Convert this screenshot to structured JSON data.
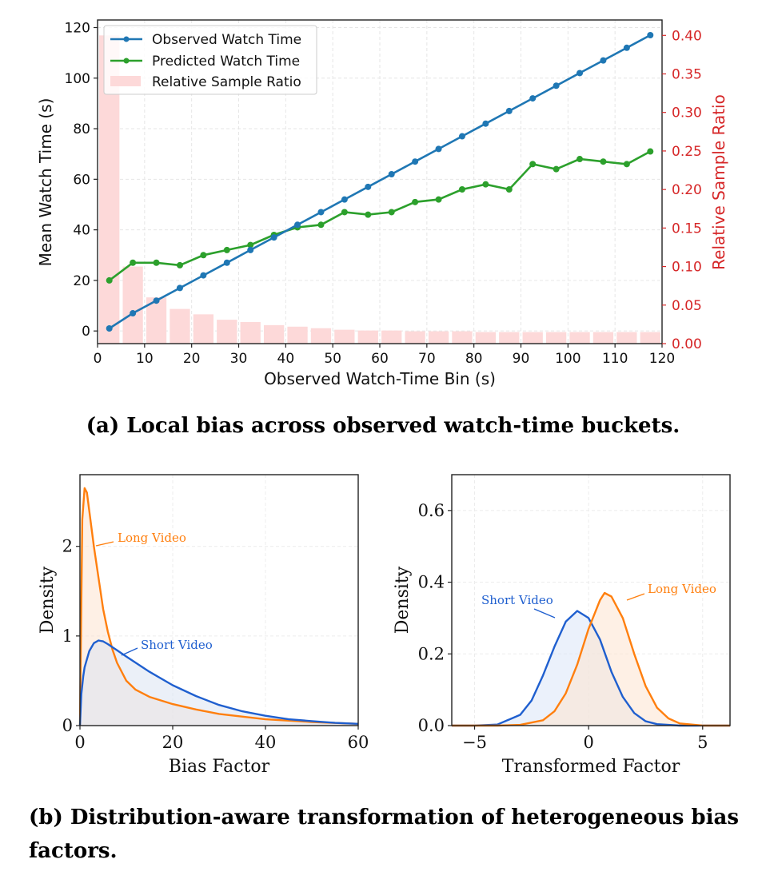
{
  "captions": {
    "a": "(a) Local bias across observed watch-time buckets.",
    "b": "(b) Distribution-aware transformation of heterogeneous bias factors."
  },
  "chart_data": [
    {
      "type": "line",
      "xlabel": "Observed Watch-Time Bin (s)",
      "ylabel": "Mean Watch Time (s)",
      "y2label": "Relative Sample Ratio",
      "xlim": [
        0,
        120
      ],
      "ylim": [
        -5,
        123
      ],
      "y2lim": [
        0,
        0.42
      ],
      "xticks": [
        0,
        10,
        20,
        30,
        40,
        50,
        60,
        70,
        80,
        90,
        100,
        110,
        120
      ],
      "yticks": [
        0,
        20,
        40,
        60,
        80,
        100,
        120
      ],
      "y2ticks": [
        "0.00",
        "0.05",
        "0.10",
        "0.15",
        "0.20",
        "0.25",
        "0.30",
        "0.35",
        "0.40"
      ],
      "grid": true,
      "legend": "top-left",
      "x": [
        2.5,
        7.5,
        12.5,
        17.5,
        22.5,
        27.5,
        32.5,
        37.5,
        42.5,
        47.5,
        52.5,
        57.5,
        62.5,
        67.5,
        72.5,
        77.5,
        82.5,
        87.5,
        92.5,
        97.5,
        102.5,
        107.5,
        112.5,
        117.5
      ],
      "series": [
        {
          "name": "Observed Watch Time",
          "color": "#1f77b4",
          "axis": "left",
          "values": [
            1,
            7,
            12,
            17,
            22,
            27,
            32,
            37,
            42,
            47,
            52,
            57,
            62,
            67,
            72,
            77,
            82,
            87,
            92,
            97,
            102,
            107,
            112,
            117
          ]
        },
        {
          "name": "Predicted Watch Time",
          "color": "#2ca02c",
          "axis": "left",
          "values": [
            20,
            27,
            27,
            26,
            30,
            32,
            34,
            38,
            41,
            42,
            47,
            46,
            47,
            51,
            52,
            56,
            58,
            56,
            66,
            64,
            68,
            67,
            66,
            71
          ]
        },
        {
          "name": "Relative Sample Ratio",
          "color": "#fdd9d9",
          "axis": "right",
          "type": "bar",
          "values": [
            0.4,
            0.1,
            0.06,
            0.045,
            0.038,
            0.031,
            0.028,
            0.024,
            0.022,
            0.02,
            0.018,
            0.017,
            0.017,
            0.016,
            0.016,
            0.016,
            0.015,
            0.015,
            0.015,
            0.015,
            0.015,
            0.015,
            0.015,
            0.015
          ]
        }
      ]
    },
    {
      "type": "area",
      "xlabel": "Bias Factor",
      "ylabel": "Density",
      "xlim": [
        0,
        60
      ],
      "ylim": [
        0,
        2.8
      ],
      "xticks": [
        0,
        20,
        40,
        60
      ],
      "yticks": [
        0,
        1,
        2
      ],
      "grid": true,
      "series": [
        {
          "name": "Long Video",
          "color": "#ff7f0e",
          "x": [
            0,
            0.5,
            1,
            1.5,
            2,
            3,
            4,
            5,
            6,
            7,
            8,
            10,
            12,
            15,
            20,
            25,
            30,
            40,
            50,
            60
          ],
          "values": [
            0,
            2.3,
            2.65,
            2.6,
            2.4,
            2.0,
            1.65,
            1.3,
            1.05,
            0.85,
            0.7,
            0.5,
            0.4,
            0.32,
            0.24,
            0.18,
            0.13,
            0.07,
            0.04,
            0.02
          ]
        },
        {
          "name": "Short Video",
          "color": "#1f5fcf",
          "x": [
            0,
            0.3,
            0.7,
            1,
            2,
            3,
            4,
            5,
            6,
            8,
            10,
            15,
            20,
            25,
            30,
            35,
            40,
            45,
            50,
            55,
            60
          ],
          "values": [
            0,
            0.35,
            0.55,
            0.65,
            0.83,
            0.92,
            0.95,
            0.94,
            0.91,
            0.84,
            0.77,
            0.6,
            0.45,
            0.33,
            0.23,
            0.16,
            0.11,
            0.07,
            0.05,
            0.03,
            0.02
          ]
        }
      ]
    },
    {
      "type": "area",
      "xlabel": "Transformed Factor",
      "ylabel": "Density",
      "xlim": [
        -6,
        6.2
      ],
      "ylim": [
        0,
        0.7
      ],
      "xticks": [
        -5,
        0,
        5
      ],
      "xticklabels": [
        "−5",
        "0",
        "5"
      ],
      "yticks": [
        "0.0",
        "0.2",
        "0.4",
        "0.6"
      ],
      "grid": true,
      "series": [
        {
          "name": "Short Video",
          "color": "#1f5fcf",
          "x": [
            -6,
            -5,
            -4,
            -3,
            -2.5,
            -2,
            -1.5,
            -1,
            -0.5,
            0,
            0.5,
            1,
            1.5,
            2,
            2.5,
            3,
            4,
            5,
            6.2
          ],
          "values": [
            0,
            0,
            0.003,
            0.03,
            0.07,
            0.14,
            0.22,
            0.29,
            0.32,
            0.3,
            0.24,
            0.15,
            0.08,
            0.035,
            0.012,
            0.004,
            0,
            0,
            0
          ]
        },
        {
          "name": "Long Video",
          "color": "#ff7f0e",
          "x": [
            -6,
            -4,
            -3,
            -2,
            -1.5,
            -1,
            -0.5,
            0,
            0.5,
            0.7,
            1,
            1.5,
            2,
            2.5,
            3,
            3.5,
            4,
            5,
            6.2
          ],
          "values": [
            0,
            0,
            0.002,
            0.015,
            0.04,
            0.09,
            0.17,
            0.27,
            0.35,
            0.37,
            0.36,
            0.3,
            0.2,
            0.11,
            0.05,
            0.02,
            0.006,
            0,
            0
          ]
        }
      ]
    }
  ]
}
